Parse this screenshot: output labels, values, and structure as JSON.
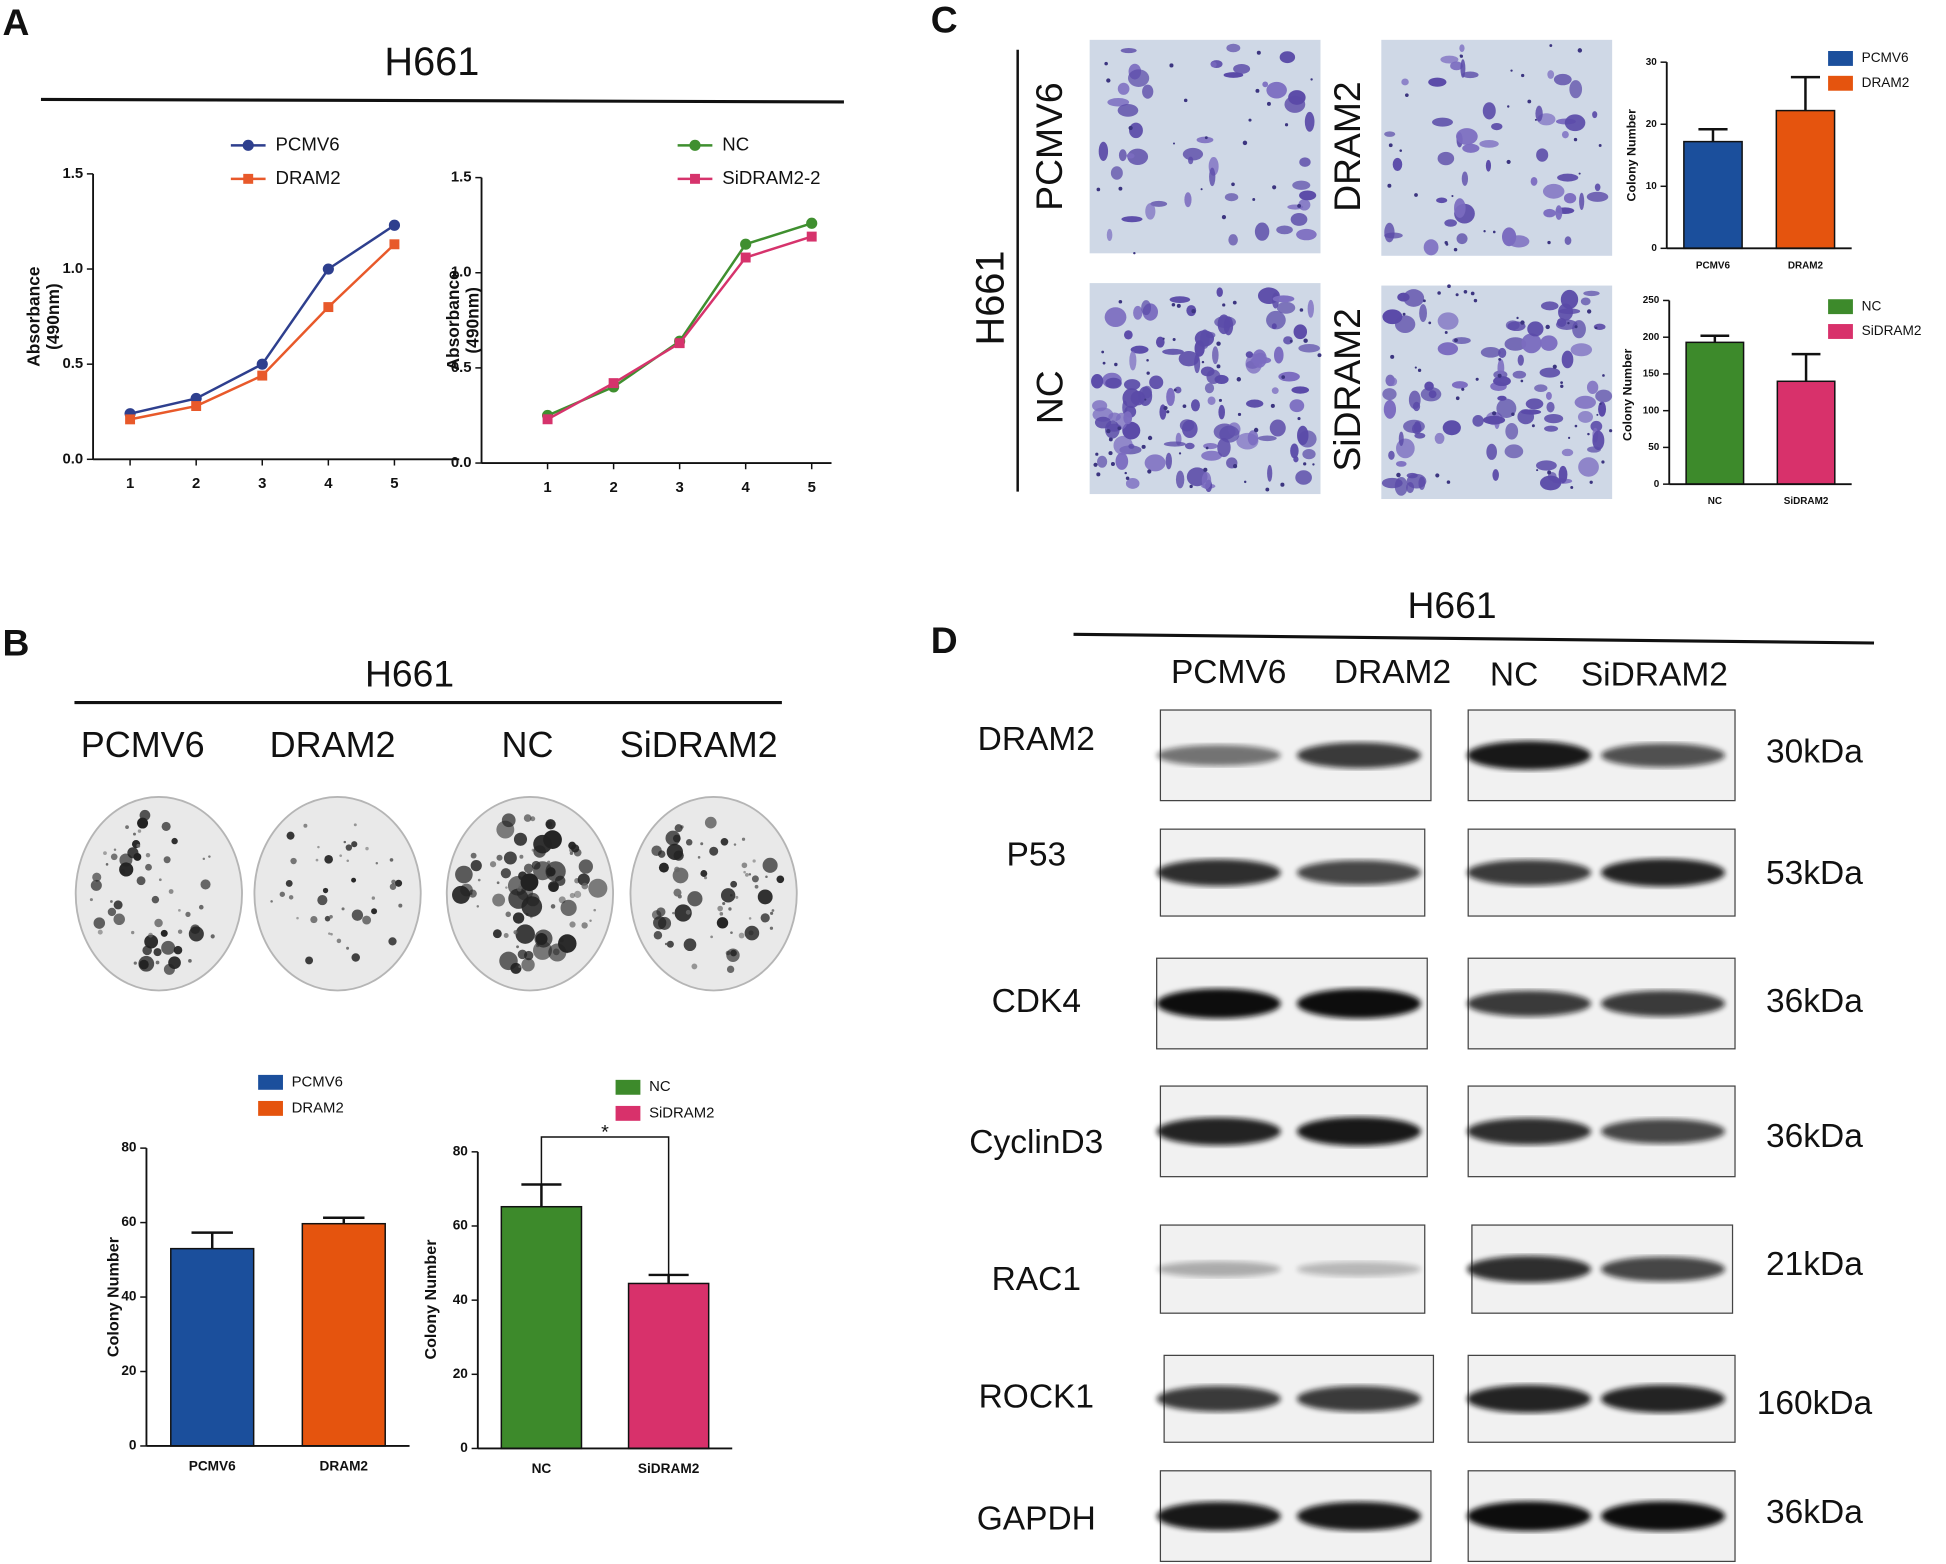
{
  "panel_labels": [
    "A",
    "B",
    "C",
    "D"
  ],
  "panel_a": {
    "title": "H661"
  },
  "panel_b": {
    "title": "H661",
    "groups": [
      "PCMV6",
      "DRAM2",
      "NC",
      "SiDRAM2"
    ]
  },
  "panel_c": {
    "cell_line": "H661",
    "images": [
      "PCMV6",
      "DRAM2",
      "NC",
      "SiDRAM2"
    ]
  },
  "panel_d": {
    "title": "H661",
    "lanes": [
      "PCMV6",
      "DRAM2",
      "NC",
      "SiDRAM2"
    ],
    "proteins": [
      {
        "name": "DRAM2",
        "size": "30kDa"
      },
      {
        "name": "P53",
        "size": "53kDa"
      },
      {
        "name": "CDK4",
        "size": "36kDa"
      },
      {
        "name": "CyclinD3",
        "size": "36kDa"
      },
      {
        "name": "RAC1",
        "size": "21kDa"
      },
      {
        "name": "ROCK1",
        "size": "160kDa"
      },
      {
        "name": "GAPDH",
        "size": "36kDa"
      }
    ]
  },
  "chart_data": [
    {
      "type": "line",
      "y_label": [
        "Absorbance",
        "(490nm)"
      ],
      "x": [
        1,
        2,
        3,
        4,
        5
      ],
      "xlim": [
        0.44,
        5.98
      ],
      "xticks": [
        1,
        2,
        3,
        4,
        5
      ],
      "ylim": [
        0,
        1.5
      ],
      "yticks": [
        {
          "value": 0,
          "label": "0.0"
        },
        0.5,
        {
          "value": 1,
          "label": "1.0"
        },
        1.5
      ],
      "series": [
        {
          "name": "PCMV6",
          "color": "#2e3f8e",
          "marker": "circle",
          "values": [
            0.24,
            0.32,
            0.5,
            1.0,
            1.23
          ]
        },
        {
          "name": "DRAM2",
          "color": "#e8592a",
          "marker": "square",
          "values": [
            0.21,
            0.28,
            0.44,
            0.8,
            1.13
          ]
        }
      ]
    },
    {
      "type": "line",
      "y_label": [
        "Absorbance",
        "(490nm)"
      ],
      "x": [
        1,
        2,
        3,
        4,
        5
      ],
      "xlim": [
        0,
        5.3
      ],
      "xticks": [
        1,
        2,
        3,
        4,
        5
      ],
      "ylim": [
        0,
        1.5
      ],
      "yticks": [
        {
          "value": 0,
          "label": "0.0"
        },
        0.5,
        {
          "value": 1,
          "label": "1.0"
        },
        1.5
      ],
      "series": [
        {
          "name": "NC",
          "color": "#3f8f2f",
          "marker": "circle",
          "values": [
            0.25,
            0.4,
            0.64,
            1.15,
            1.26
          ]
        },
        {
          "name": "SiDRAM2-2",
          "color": "#d6336c",
          "marker": "square",
          "values": [
            0.23,
            0.42,
            0.63,
            1.08,
            1.19
          ]
        }
      ]
    },
    {
      "type": "bar",
      "y_label": "Colony Number",
      "categories": [
        "PCMV6",
        "DRAM2"
      ],
      "values": [
        17.2,
        22.2
      ],
      "errors": [
        2,
        5.4
      ],
      "colors": [
        "#1b4f9c",
        "#e5540e"
      ],
      "ylim": [
        0,
        30
      ],
      "yticks": [
        0,
        10,
        20,
        30
      ]
    },
    {
      "type": "bar",
      "y_label": "Colony Number",
      "categories": [
        "NC",
        "SiDRAM2"
      ],
      "values": [
        193,
        140
      ],
      "errors": [
        9,
        37
      ],
      "colors": [
        "#3d8a2b",
        "#d8316b"
      ],
      "ylim": [
        0,
        250
      ],
      "yticks": [
        0,
        50,
        100,
        150,
        200,
        250
      ]
    },
    {
      "type": "bar",
      "y_label": "Colony Number",
      "categories": [
        "PCMV6",
        "DRAM2"
      ],
      "values": [
        53,
        59.7
      ],
      "errors": [
        4.3,
        1.6
      ],
      "colors": [
        "#1b4f9c",
        "#e5540e"
      ],
      "ylim": [
        0,
        80
      ],
      "yticks": [
        0,
        20,
        40,
        60,
        80
      ]
    },
    {
      "type": "bar",
      "y_label": "Colony Number",
      "categories": [
        "NC",
        "SiDRAM2"
      ],
      "values": [
        65.2,
        44.5
      ],
      "errors": [
        6,
        2.3
      ],
      "colors": [
        "#3d8a2b",
        "#d8316b"
      ],
      "ylim": [
        0,
        80
      ],
      "yticks": [
        0,
        20,
        40,
        60,
        80
      ],
      "annotation": "*"
    }
  ]
}
